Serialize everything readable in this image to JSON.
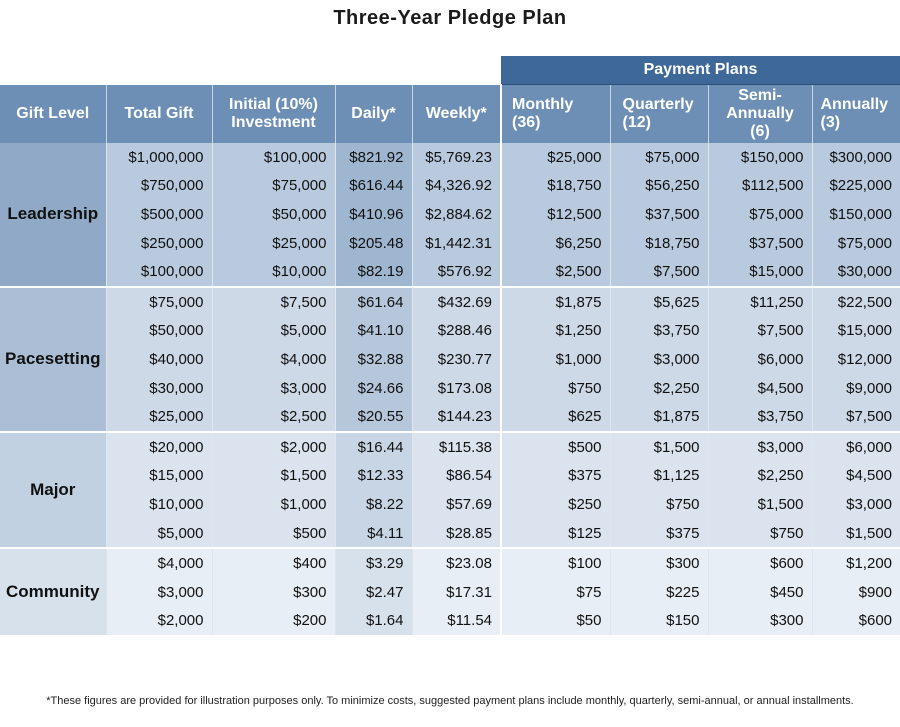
{
  "title": "Three-Year Pledge Plan",
  "header": {
    "payment_plans": "Payment Plans",
    "columns": [
      "Gift Level",
      "Total Gift",
      "Initial (10%)",
      "Investment",
      "Daily*",
      "Weekly*",
      "Monthly",
      "(36)",
      "Quarterly",
      "(12)",
      "Semi-Annually",
      "(6)",
      "Annually",
      "(3)"
    ]
  },
  "groups": [
    {
      "level": "Leadership",
      "rows": [
        [
          "$1,000,000",
          "$100,000",
          "$821.92",
          "$5,769.23",
          "$25,000",
          "$75,000",
          "$150,000",
          "$300,000"
        ],
        [
          "$750,000",
          "$75,000",
          "$616.44",
          "$4,326.92",
          "$18,750",
          "$56,250",
          "$112,500",
          "$225,000"
        ],
        [
          "$500,000",
          "$50,000",
          "$410.96",
          "$2,884.62",
          "$12,500",
          "$37,500",
          "$75,000",
          "$150,000"
        ],
        [
          "$250,000",
          "$25,000",
          "$205.48",
          "$1,442.31",
          "$6,250",
          "$18,750",
          "$37,500",
          "$75,000"
        ],
        [
          "$100,000",
          "$10,000",
          "$82.19",
          "$576.92",
          "$2,500",
          "$7,500",
          "$15,000",
          "$30,000"
        ]
      ]
    },
    {
      "level": "Pacesetting",
      "rows": [
        [
          "$75,000",
          "$7,500",
          "$61.64",
          "$432.69",
          "$1,875",
          "$5,625",
          "$11,250",
          "$22,500"
        ],
        [
          "$50,000",
          "$5,000",
          "$41.10",
          "$288.46",
          "$1,250",
          "$3,750",
          "$7,500",
          "$15,000"
        ],
        [
          "$40,000",
          "$4,000",
          "$32.88",
          "$230.77",
          "$1,000",
          "$3,000",
          "$6,000",
          "$12,000"
        ],
        [
          "$30,000",
          "$3,000",
          "$24.66",
          "$173.08",
          "$750",
          "$2,250",
          "$4,500",
          "$9,000"
        ],
        [
          "$25,000",
          "$2,500",
          "$20.55",
          "$144.23",
          "$625",
          "$1,875",
          "$3,750",
          "$7,500"
        ]
      ]
    },
    {
      "level": "Major",
      "rows": [
        [
          "$20,000",
          "$2,000",
          "$16.44",
          "$115.38",
          "$500",
          "$1,500",
          "$3,000",
          "$6,000"
        ],
        [
          "$15,000",
          "$1,500",
          "$12.33",
          "$86.54",
          "$375",
          "$1,125",
          "$2,250",
          "$4,500"
        ],
        [
          "$10,000",
          "$1,000",
          "$8.22",
          "$57.69",
          "$250",
          "$750",
          "$1,500",
          "$3,000"
        ],
        [
          "$5,000",
          "$500",
          "$4.11",
          "$28.85",
          "$125",
          "$375",
          "$750",
          "$1,500"
        ]
      ]
    },
    {
      "level": "Community",
      "rows": [
        [
          "$4,000",
          "$400",
          "$3.29",
          "$23.08",
          "$100",
          "$300",
          "$600",
          "$1,200"
        ],
        [
          "$3,000",
          "$300",
          "$2.47",
          "$17.31",
          "$75",
          "$225",
          "$450",
          "$900"
        ],
        [
          "$2,000",
          "$200",
          "$1.64",
          "$11.54",
          "$50",
          "$150",
          "$300",
          "$600"
        ]
      ]
    }
  ],
  "footnote": "*These figures are provided for illustration purposes only. To minimize costs, suggested payment plans include monthly, quarterly, semi-annual, or annual installments."
}
